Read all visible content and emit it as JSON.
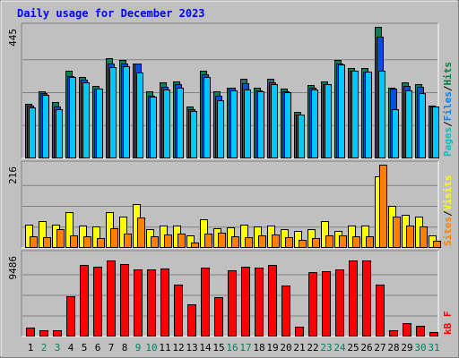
{
  "chart_data": {
    "type": "bar",
    "title": "Daily usage for December 2023",
    "days": [
      "1",
      "2",
      "3",
      "4",
      "5",
      "6",
      "7",
      "8",
      "9",
      "10",
      "11",
      "12",
      "13",
      "14",
      "15",
      "16",
      "17",
      "18",
      "19",
      "20",
      "21",
      "22",
      "23",
      "24",
      "25",
      "26",
      "27",
      "28",
      "29",
      "30",
      "31"
    ],
    "weekend_days": [
      "2",
      "3",
      "9",
      "10",
      "16",
      "17",
      "23",
      "24",
      "30",
      "31"
    ],
    "panels": [
      {
        "name": "hits-files-pages",
        "ymax": 445,
        "ymax_label": "445",
        "legend": [
          "Pages",
          "/",
          "Files",
          "/",
          "Hits"
        ],
        "legend_colors": [
          "#00c0c0",
          "#000000",
          "#0080ff",
          "#000000",
          "#008040"
        ],
        "series": [
          {
            "name": "Hits",
            "color": "#00805c",
            "values": [
              185,
              228,
              192,
              298,
              274,
              245,
              338,
              334,
              322,
              228,
              257,
              260,
              175,
              298,
              228,
              240,
              270,
              238,
              270,
              236,
              158,
              249,
              261,
              333,
              306,
              306,
              444,
              240,
              256,
              250,
              180
            ]
          },
          {
            "name": "Files",
            "color": "#0050e0",
            "values": [
              178,
              220,
              176,
              280,
              267,
              237,
              322,
              322,
              322,
              213,
              242,
              250,
              168,
              286,
              212,
              238,
              254,
              230,
              258,
              228,
              148,
              238,
              250,
              322,
              296,
              295,
              412,
              235,
              246,
              243,
              175
            ]
          },
          {
            "name": "Pages",
            "color": "#00c8ff",
            "values": [
              172,
              214,
              168,
              274,
              258,
              237,
              310,
              312,
              292,
              208,
              232,
              238,
              161,
              275,
              198,
              230,
              234,
              228,
              252,
              224,
              148,
              234,
              250,
              318,
              296,
              295,
              296,
              168,
              230,
              222,
              175
            ]
          }
        ]
      },
      {
        "name": "visits-sites",
        "ymax": 216,
        "ymax_label": "216",
        "legend": [
          "Sites",
          "/",
          "Visits"
        ],
        "legend_colors": [
          "#ff8000",
          "#000000",
          "#ffff00"
        ],
        "series": [
          {
            "name": "Visits",
            "color": "#ffff00",
            "values": [
              61,
              69,
              61,
              92,
              59,
              56,
              94,
              81,
              114,
              48,
              57,
              58,
              32,
              74,
              52,
              54,
              61,
              56,
              58,
              48,
              45,
              49,
              69,
              44,
              58,
              58,
              185,
              109,
              85,
              81,
              33
            ]
          },
          {
            "name": "Sites",
            "color": "#ff8000",
            "values": [
              30,
              29,
              49,
              32,
              31,
              25,
              51,
              37,
              79,
              30,
              34,
              36,
              15,
              37,
              39,
              31,
              29,
              33,
              34,
              28,
              22,
              25,
              33,
              32,
              31,
              31,
              216,
              81,
              59,
              56,
              18
            ]
          }
        ]
      },
      {
        "name": "kbytes",
        "ymax": 9486,
        "ymax_label": "9486",
        "legend": [
          "kB F"
        ],
        "legend_colors": [
          "#ff0000"
        ],
        "series": [
          {
            "name": "kB F",
            "color": "#ff0000",
            "values": [
              1020,
              763,
              762,
              4644,
              8201,
              8056,
              8740,
              8380,
              7730,
              7730,
              7807,
              5940,
              3696,
              7939,
              4500,
              7665,
              8022,
              7961,
              8222,
              5880,
              1100,
              7377,
              7577,
              7730,
              8740,
              8740,
              5940,
              700,
              1500,
              1200,
              500
            ]
          }
        ]
      }
    ]
  }
}
